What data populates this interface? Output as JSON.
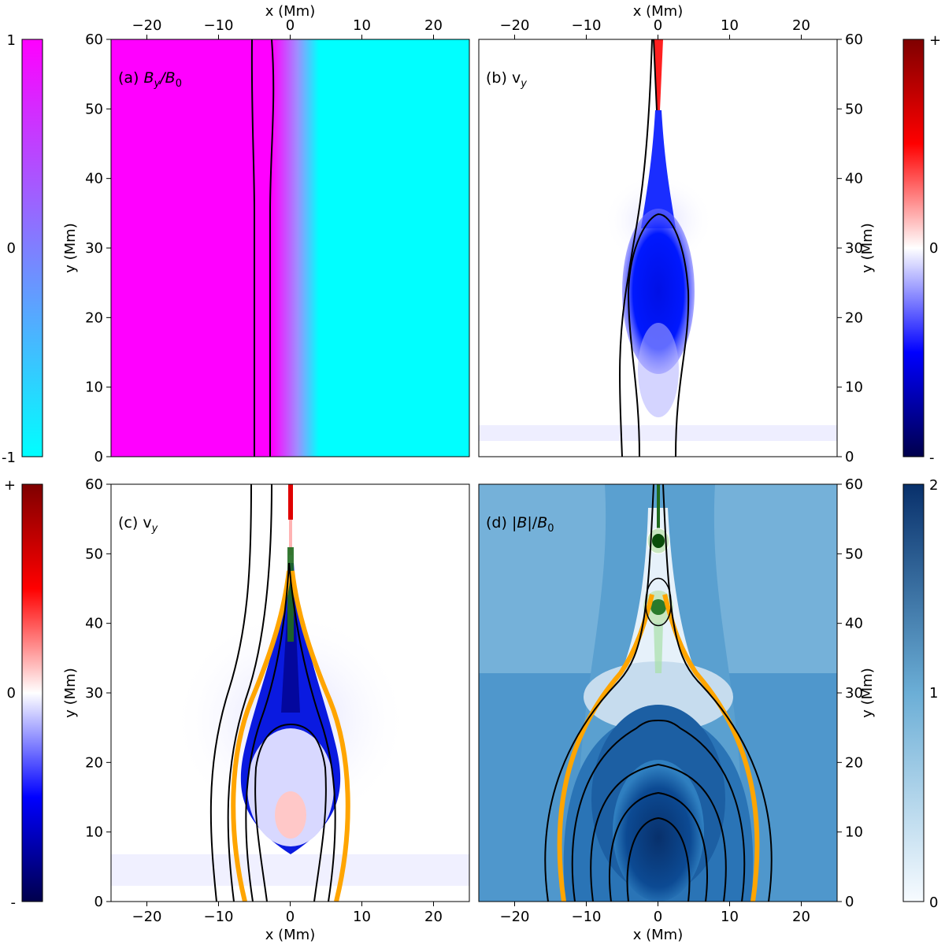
{
  "chart_data": [
    {
      "type": "heatmap",
      "panel_label": "(a) B_y/B_0",
      "field": "B_y/B_0",
      "xlabel": "x (Mm)",
      "ylabel": "y (Mm)",
      "xlim": [
        -25,
        25
      ],
      "ylim": [
        0,
        60
      ],
      "xticks": [
        -20,
        -10,
        0,
        10,
        20
      ],
      "yticks": [
        0,
        10,
        20,
        30,
        40,
        50,
        60
      ],
      "colorbar": {
        "ticks": [
          "-1",
          "0",
          "1"
        ],
        "min": -1,
        "max": 1,
        "colors": [
          "#00ffff",
          "#ff00ff"
        ]
      },
      "field_lines_x": [
        -5,
        -2.8
      ]
    },
    {
      "type": "heatmap",
      "panel_label": "(b) v_y",
      "field": "v_y",
      "xlabel": "x (Mm)",
      "ylabel": "y (Mm)",
      "xlim": [
        -25,
        25
      ],
      "ylim": [
        0,
        60
      ],
      "xticks": [
        -20,
        -10,
        0,
        10,
        20
      ],
      "yticks": [
        0,
        10,
        20,
        30,
        40,
        50,
        60
      ],
      "colorbar": {
        "ticks": [
          "-",
          "0",
          "+"
        ],
        "colors": [
          "#00004c",
          "#0000ff",
          "#ffffff",
          "#ff0000",
          "#7f0000"
        ]
      }
    },
    {
      "type": "heatmap",
      "panel_label": "(c) v_y",
      "field": "v_y",
      "xlabel": "x (Mm)",
      "ylabel": "y (Mm)",
      "xlim": [
        -25,
        25
      ],
      "ylim": [
        0,
        60
      ],
      "xticks": [
        -20,
        -10,
        0,
        10,
        20
      ],
      "yticks": [
        0,
        10,
        20,
        30,
        40,
        50,
        60
      ],
      "colorbar": {
        "ticks": [
          "-",
          "0",
          "+"
        ],
        "colors": [
          "#00004c",
          "#0000ff",
          "#ffffff",
          "#ff0000",
          "#7f0000"
        ]
      }
    },
    {
      "type": "heatmap",
      "panel_label": "(d) |B|/B_0",
      "field": "|B|/B_0",
      "xlabel": "x (Mm)",
      "ylabel": "y (Mm)",
      "xlim": [
        -25,
        25
      ],
      "ylim": [
        0,
        60
      ],
      "xticks": [
        -20,
        -10,
        0,
        10,
        20
      ],
      "yticks": [
        0,
        10,
        20,
        30,
        40,
        50,
        60
      ],
      "colorbar": {
        "ticks": [
          "0",
          "1",
          "2"
        ],
        "min": 0,
        "max": 2,
        "colors": [
          "#f7fbff",
          "#6baed6",
          "#08306b"
        ]
      }
    }
  ]
}
